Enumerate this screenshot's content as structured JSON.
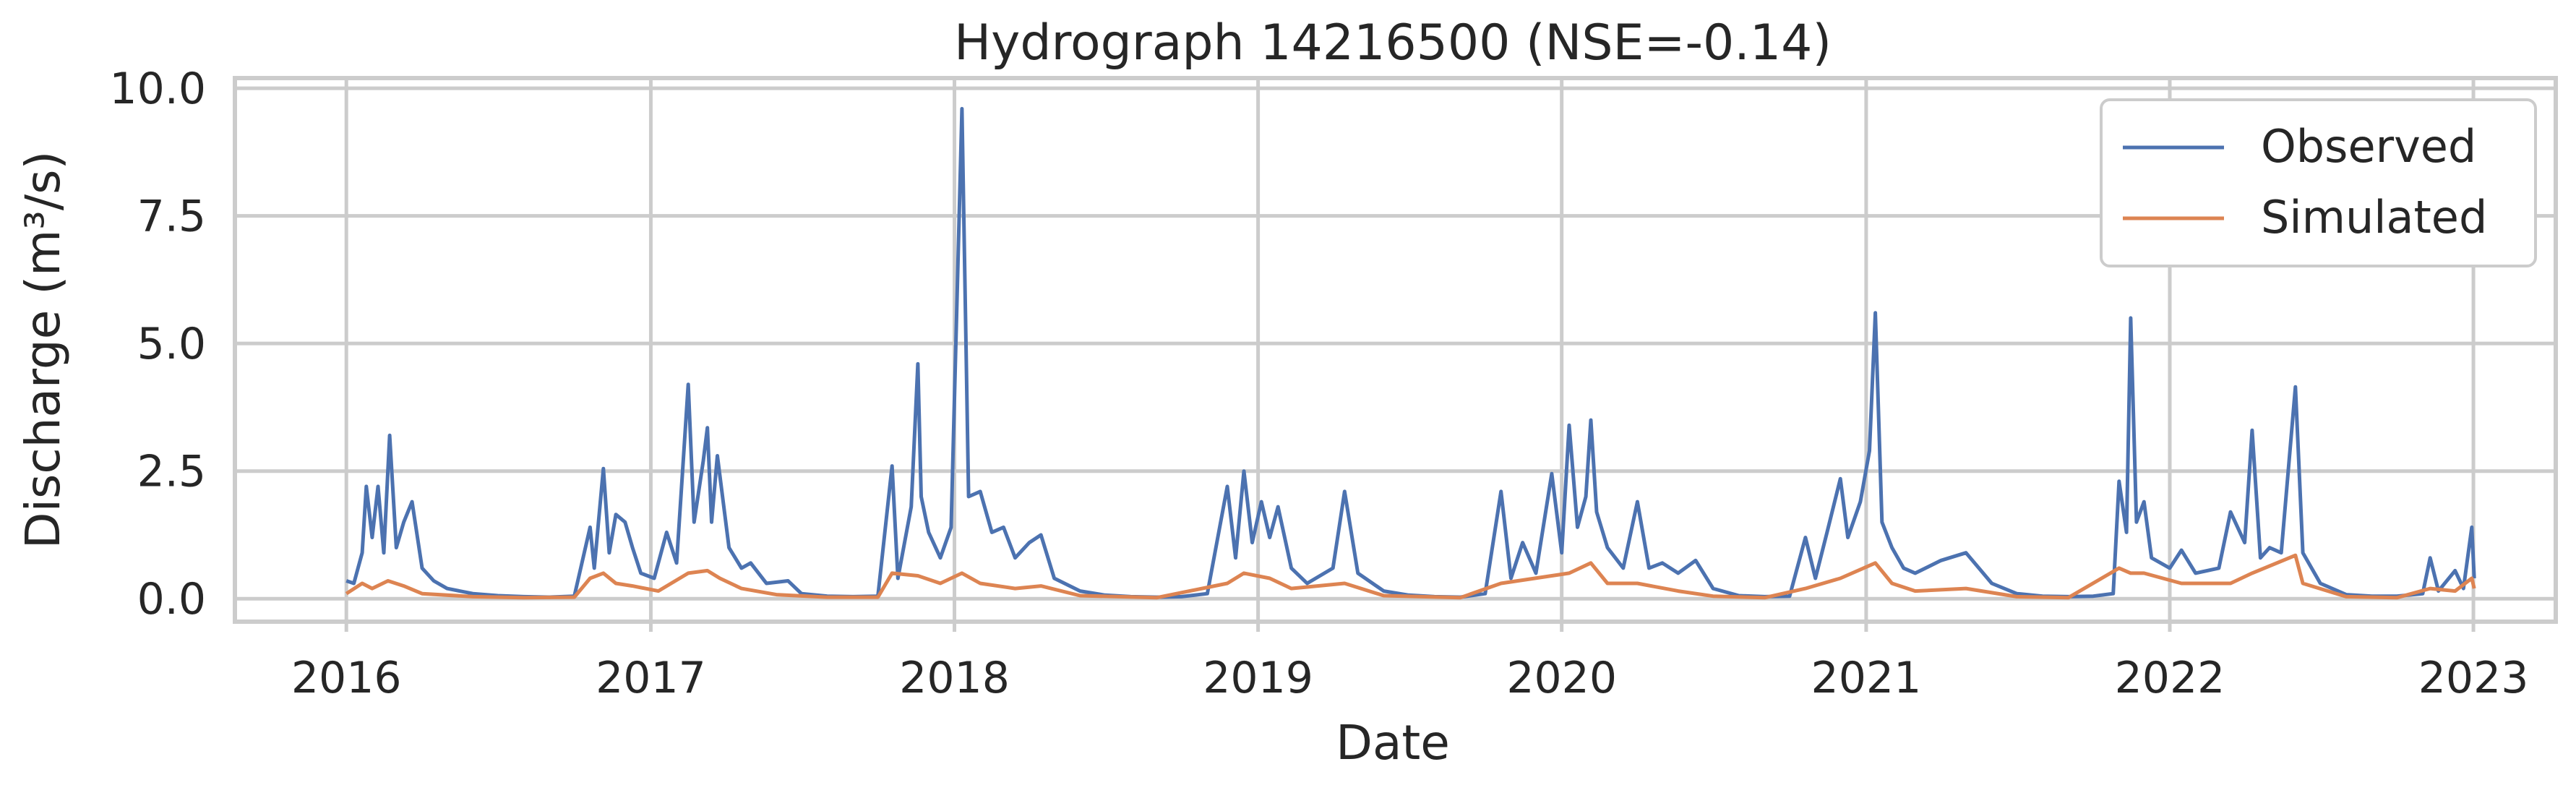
{
  "chart_data": {
    "type": "line",
    "title": "Hydrograph 14216500  (NSE=-0.14)",
    "xlabel": "Date",
    "ylabel": "Discharge (m³/s)",
    "x_ticks": [
      "2016",
      "2017",
      "2018",
      "2019",
      "2020",
      "2021",
      "2022",
      "2023"
    ],
    "y_ticks": [
      "0.0",
      "2.5",
      "5.0",
      "7.5",
      "10.0"
    ],
    "xlim": [
      "2015-08-20",
      "2023-04-10"
    ],
    "ylim": [
      -0.45,
      10.2
    ],
    "grid": true,
    "legend_position": "top-right",
    "series": [
      {
        "name": "Observed",
        "color": "#4c72b0",
        "points": [
          [
            "2016-01-01",
            0.35
          ],
          [
            "2016-01-10",
            0.3
          ],
          [
            "2016-01-20",
            0.9
          ],
          [
            "2016-01-25",
            2.2
          ],
          [
            "2016-02-01",
            1.2
          ],
          [
            "2016-02-08",
            2.2
          ],
          [
            "2016-02-15",
            0.9
          ],
          [
            "2016-02-22",
            3.2
          ],
          [
            "2016-03-01",
            1.0
          ],
          [
            "2016-03-10",
            1.5
          ],
          [
            "2016-03-20",
            1.9
          ],
          [
            "2016-04-01",
            0.6
          ],
          [
            "2016-04-15",
            0.35
          ],
          [
            "2016-05-01",
            0.2
          ],
          [
            "2016-06-01",
            0.1
          ],
          [
            "2016-07-01",
            0.06
          ],
          [
            "2016-08-01",
            0.04
          ],
          [
            "2016-09-01",
            0.03
          ],
          [
            "2016-10-01",
            0.05
          ],
          [
            "2016-10-20",
            1.4
          ],
          [
            "2016-10-25",
            0.6
          ],
          [
            "2016-11-05",
            2.55
          ],
          [
            "2016-11-12",
            0.9
          ],
          [
            "2016-11-20",
            1.65
          ],
          [
            "2016-12-01",
            1.5
          ],
          [
            "2016-12-10",
            1.0
          ],
          [
            "2016-12-20",
            0.5
          ],
          [
            "2017-01-05",
            0.4
          ],
          [
            "2017-01-20",
            1.3
          ],
          [
            "2017-02-01",
            0.7
          ],
          [
            "2017-02-15",
            4.2
          ],
          [
            "2017-02-22",
            1.5
          ],
          [
            "2017-03-05",
            2.7
          ],
          [
            "2017-03-10",
            3.35
          ],
          [
            "2017-03-15",
            1.5
          ],
          [
            "2017-03-22",
            2.8
          ],
          [
            "2017-04-05",
            1.0
          ],
          [
            "2017-04-20",
            0.6
          ],
          [
            "2017-05-01",
            0.7
          ],
          [
            "2017-05-20",
            0.3
          ],
          [
            "2017-06-15",
            0.35
          ],
          [
            "2017-07-01",
            0.1
          ],
          [
            "2017-08-01",
            0.05
          ],
          [
            "2017-09-01",
            0.04
          ],
          [
            "2017-10-01",
            0.05
          ],
          [
            "2017-10-18",
            2.6
          ],
          [
            "2017-10-25",
            0.4
          ],
          [
            "2017-11-10",
            1.8
          ],
          [
            "2017-11-18",
            4.6
          ],
          [
            "2017-11-22",
            2.0
          ],
          [
            "2017-12-01",
            1.3
          ],
          [
            "2017-12-15",
            0.8
          ],
          [
            "2017-12-28",
            1.4
          ],
          [
            "2018-01-10",
            9.6
          ],
          [
            "2018-01-18",
            2.0
          ],
          [
            "2018-02-01",
            2.1
          ],
          [
            "2018-02-15",
            1.3
          ],
          [
            "2018-03-01",
            1.4
          ],
          [
            "2018-03-15",
            0.8
          ],
          [
            "2018-04-01",
            1.1
          ],
          [
            "2018-04-15",
            1.25
          ],
          [
            "2018-05-01",
            0.4
          ],
          [
            "2018-06-01",
            0.15
          ],
          [
            "2018-07-01",
            0.07
          ],
          [
            "2018-08-01",
            0.04
          ],
          [
            "2018-09-01",
            0.03
          ],
          [
            "2018-10-01",
            0.04
          ],
          [
            "2018-11-01",
            0.1
          ],
          [
            "2018-11-25",
            2.2
          ],
          [
            "2018-12-05",
            0.8
          ],
          [
            "2018-12-15",
            2.5
          ],
          [
            "2018-12-25",
            1.1
          ],
          [
            "2019-01-05",
            1.9
          ],
          [
            "2019-01-15",
            1.2
          ],
          [
            "2019-01-25",
            1.8
          ],
          [
            "2019-02-10",
            0.6
          ],
          [
            "2019-03-01",
            0.3
          ],
          [
            "2019-04-01",
            0.6
          ],
          [
            "2019-04-15",
            2.1
          ],
          [
            "2019-05-01",
            0.5
          ],
          [
            "2019-06-01",
            0.15
          ],
          [
            "2019-07-01",
            0.07
          ],
          [
            "2019-08-01",
            0.04
          ],
          [
            "2019-09-01",
            0.03
          ],
          [
            "2019-10-01",
            0.1
          ],
          [
            "2019-10-20",
            2.1
          ],
          [
            "2019-11-01",
            0.4
          ],
          [
            "2019-11-15",
            1.1
          ],
          [
            "2019-12-01",
            0.5
          ],
          [
            "2019-12-20",
            2.45
          ],
          [
            "2020-01-01",
            0.9
          ],
          [
            "2020-01-10",
            3.4
          ],
          [
            "2020-01-20",
            1.4
          ],
          [
            "2020-01-30",
            2.0
          ],
          [
            "2020-02-05",
            3.5
          ],
          [
            "2020-02-12",
            1.7
          ],
          [
            "2020-02-25",
            1.0
          ],
          [
            "2020-03-15",
            0.6
          ],
          [
            "2020-04-01",
            1.9
          ],
          [
            "2020-04-15",
            0.6
          ],
          [
            "2020-05-01",
            0.7
          ],
          [
            "2020-05-20",
            0.5
          ],
          [
            "2020-06-10",
            0.75
          ],
          [
            "2020-07-01",
            0.2
          ],
          [
            "2020-08-01",
            0.06
          ],
          [
            "2020-09-01",
            0.04
          ],
          [
            "2020-10-01",
            0.05
          ],
          [
            "2020-10-20",
            1.2
          ],
          [
            "2020-11-01",
            0.4
          ],
          [
            "2020-11-15",
            1.3
          ],
          [
            "2020-12-01",
            2.35
          ],
          [
            "2020-12-10",
            1.2
          ],
          [
            "2020-12-25",
            1.9
          ],
          [
            "2021-01-05",
            2.9
          ],
          [
            "2021-01-12",
            5.6
          ],
          [
            "2021-01-20",
            1.5
          ],
          [
            "2021-02-01",
            1.0
          ],
          [
            "2021-02-15",
            0.6
          ],
          [
            "2021-03-01",
            0.5
          ],
          [
            "2021-04-01",
            0.75
          ],
          [
            "2021-05-01",
            0.9
          ],
          [
            "2021-06-01",
            0.3
          ],
          [
            "2021-07-01",
            0.1
          ],
          [
            "2021-08-01",
            0.05
          ],
          [
            "2021-09-01",
            0.04
          ],
          [
            "2021-10-01",
            0.05
          ],
          [
            "2021-10-25",
            0.1
          ],
          [
            "2021-11-01",
            2.3
          ],
          [
            "2021-11-10",
            1.3
          ],
          [
            "2021-11-15",
            5.5
          ],
          [
            "2021-11-22",
            1.5
          ],
          [
            "2021-12-01",
            1.9
          ],
          [
            "2021-12-10",
            0.8
          ],
          [
            "2022-01-01",
            0.6
          ],
          [
            "2022-01-15",
            0.95
          ],
          [
            "2022-02-01",
            0.5
          ],
          [
            "2022-03-01",
            0.6
          ],
          [
            "2022-03-15",
            1.7
          ],
          [
            "2022-04-01",
            1.1
          ],
          [
            "2022-04-10",
            3.3
          ],
          [
            "2022-04-20",
            0.8
          ],
          [
            "2022-05-01",
            1.0
          ],
          [
            "2022-05-15",
            0.9
          ],
          [
            "2022-06-01",
            4.15
          ],
          [
            "2022-06-10",
            0.9
          ],
          [
            "2022-07-01",
            0.3
          ],
          [
            "2022-08-01",
            0.08
          ],
          [
            "2022-09-01",
            0.05
          ],
          [
            "2022-10-01",
            0.05
          ],
          [
            "2022-11-01",
            0.1
          ],
          [
            "2022-11-10",
            0.8
          ],
          [
            "2022-11-20",
            0.15
          ],
          [
            "2022-12-10",
            0.55
          ],
          [
            "2022-12-20",
            0.2
          ],
          [
            "2022-12-30",
            1.4
          ],
          [
            "2023-01-02",
            0.4
          ]
        ]
      },
      {
        "name": "Simulated",
        "color": "#dd8452",
        "points": [
          [
            "2016-01-01",
            0.1
          ],
          [
            "2016-01-20",
            0.3
          ],
          [
            "2016-02-01",
            0.2
          ],
          [
            "2016-02-20",
            0.35
          ],
          [
            "2016-03-10",
            0.25
          ],
          [
            "2016-04-01",
            0.1
          ],
          [
            "2016-06-01",
            0.04
          ],
          [
            "2016-08-01",
            0.02
          ],
          [
            "2016-10-01",
            0.03
          ],
          [
            "2016-10-20",
            0.4
          ],
          [
            "2016-11-05",
            0.5
          ],
          [
            "2016-11-20",
            0.3
          ],
          [
            "2016-12-10",
            0.25
          ],
          [
            "2017-01-10",
            0.15
          ],
          [
            "2017-02-15",
            0.5
          ],
          [
            "2017-03-10",
            0.55
          ],
          [
            "2017-03-25",
            0.4
          ],
          [
            "2017-04-20",
            0.2
          ],
          [
            "2017-06-01",
            0.08
          ],
          [
            "2017-08-01",
            0.03
          ],
          [
            "2017-10-01",
            0.03
          ],
          [
            "2017-10-18",
            0.5
          ],
          [
            "2017-11-18",
            0.45
          ],
          [
            "2017-12-15",
            0.3
          ],
          [
            "2018-01-10",
            0.5
          ],
          [
            "2018-02-01",
            0.3
          ],
          [
            "2018-03-15",
            0.2
          ],
          [
            "2018-04-15",
            0.25
          ],
          [
            "2018-06-01",
            0.06
          ],
          [
            "2018-09-01",
            0.02
          ],
          [
            "2018-11-25",
            0.3
          ],
          [
            "2018-12-15",
            0.5
          ],
          [
            "2019-01-15",
            0.4
          ],
          [
            "2019-02-10",
            0.2
          ],
          [
            "2019-04-15",
            0.3
          ],
          [
            "2019-06-01",
            0.06
          ],
          [
            "2019-09-01",
            0.02
          ],
          [
            "2019-10-20",
            0.3
          ],
          [
            "2019-12-20",
            0.45
          ],
          [
            "2020-01-10",
            0.5
          ],
          [
            "2020-02-05",
            0.7
          ],
          [
            "2020-02-25",
            0.3
          ],
          [
            "2020-04-01",
            0.3
          ],
          [
            "2020-05-20",
            0.15
          ],
          [
            "2020-07-01",
            0.05
          ],
          [
            "2020-09-01",
            0.02
          ],
          [
            "2020-10-20",
            0.2
          ],
          [
            "2020-12-01",
            0.4
          ],
          [
            "2021-01-12",
            0.7
          ],
          [
            "2021-02-01",
            0.3
          ],
          [
            "2021-03-01",
            0.15
          ],
          [
            "2021-05-01",
            0.2
          ],
          [
            "2021-07-01",
            0.04
          ],
          [
            "2021-09-01",
            0.02
          ],
          [
            "2021-11-01",
            0.6
          ],
          [
            "2021-11-15",
            0.5
          ],
          [
            "2021-12-01",
            0.5
          ],
          [
            "2022-01-15",
            0.3
          ],
          [
            "2022-03-15",
            0.3
          ],
          [
            "2022-04-10",
            0.5
          ],
          [
            "2022-06-01",
            0.85
          ],
          [
            "2022-06-10",
            0.3
          ],
          [
            "2022-08-01",
            0.04
          ],
          [
            "2022-10-01",
            0.02
          ],
          [
            "2022-11-10",
            0.2
          ],
          [
            "2022-12-10",
            0.15
          ],
          [
            "2022-12-30",
            0.4
          ],
          [
            "2023-01-02",
            0.2
          ]
        ]
      }
    ]
  }
}
